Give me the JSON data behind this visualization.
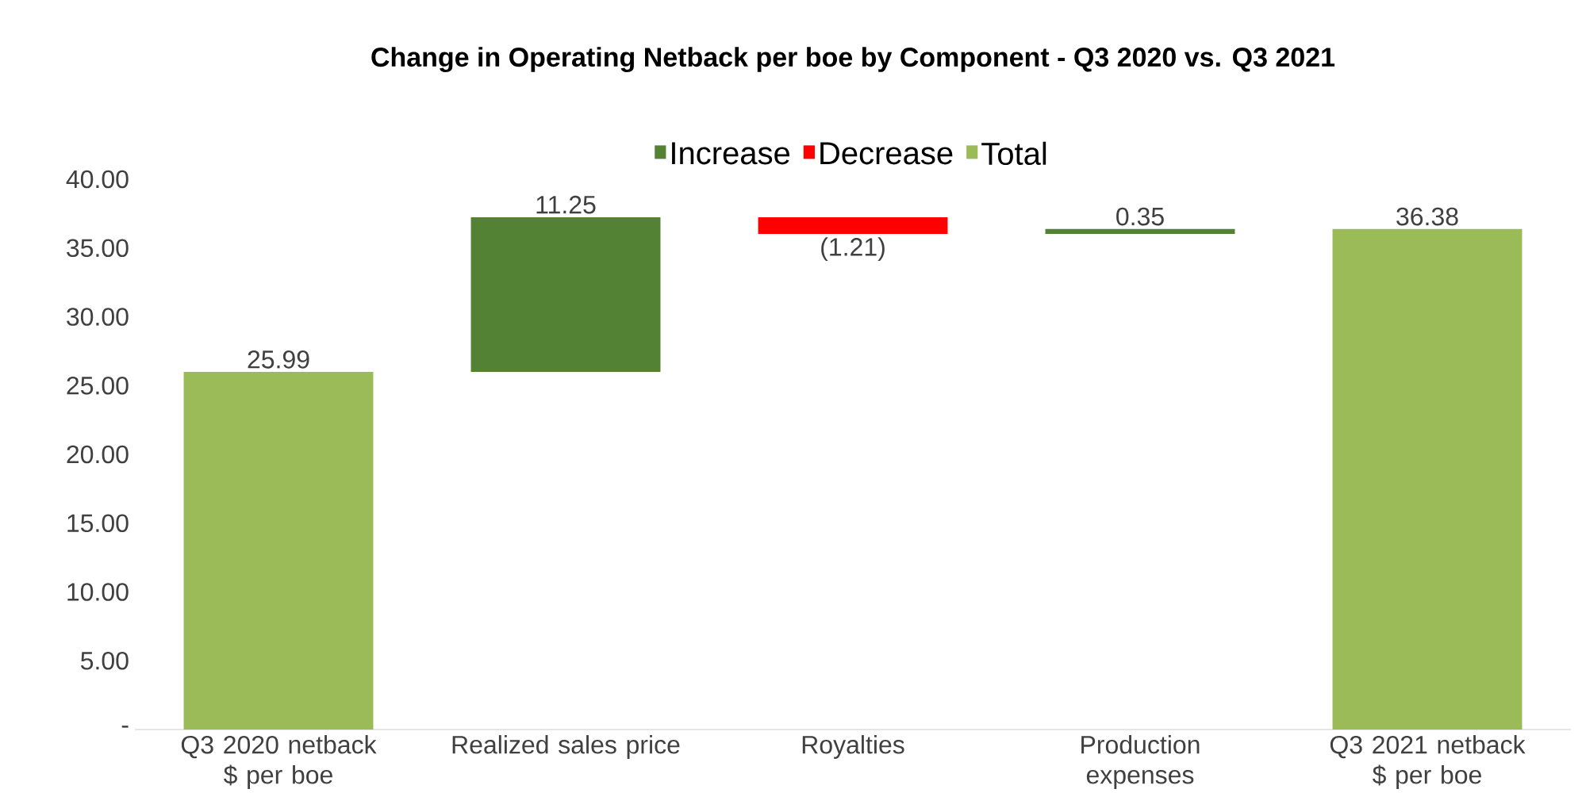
{
  "chart_data": {
    "type": "bar",
    "title": "Change in Operating Netback per boe by Component - Q3 2020 vs. Q3 2021",
    "categories": [
      "Q3 2020 netback $ per boe",
      "Realized sales price",
      "Royalties",
      "Production expenses",
      "Q3 2021 netback $ per boe"
    ],
    "series": [
      {
        "name": "Increase",
        "color": "#548235",
        "values": [
          null,
          11.25,
          null,
          0.35,
          null
        ],
        "base": [
          null,
          25.99,
          null,
          36.03,
          null
        ],
        "value_labels": [
          null,
          "11.25",
          null,
          "0.35",
          null
        ]
      },
      {
        "name": "Decrease",
        "color": "#ff0000",
        "values": [
          null,
          null,
          -1.21,
          null,
          null
        ],
        "base": [
          null,
          null,
          37.24,
          null,
          null
        ],
        "value_labels": [
          null,
          null,
          "(1.21)",
          null,
          null
        ]
      },
      {
        "name": "Total",
        "color": "#9bbb59",
        "values": [
          25.99,
          null,
          null,
          null,
          36.38
        ],
        "base": [
          0,
          null,
          null,
          null,
          0
        ],
        "value_labels": [
          "25.99",
          null,
          null,
          null,
          "36.38"
        ]
      }
    ],
    "ylim": [
      0,
      40
    ],
    "yticks": [
      {
        "value": 0,
        "label": "-"
      },
      {
        "value": 5,
        "label": "5.00"
      },
      {
        "value": 10,
        "label": "10.00"
      },
      {
        "value": 15,
        "label": "15.00"
      },
      {
        "value": 20,
        "label": "20.00"
      },
      {
        "value": 25,
        "label": "25.00"
      },
      {
        "value": 30,
        "label": "30.00"
      },
      {
        "value": 35,
        "label": "35.00"
      },
      {
        "value": 40,
        "label": "40.00"
      }
    ],
    "legend": "top"
  }
}
